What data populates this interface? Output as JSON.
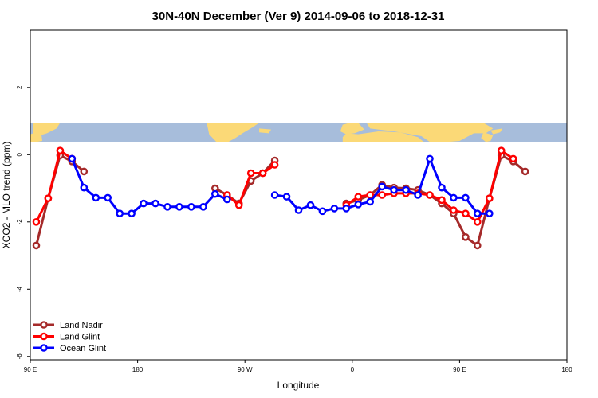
{
  "chart_data": {
    "type": "line",
    "title": "30N-40N December (Ver 9)   2014-09-06 to 2018-12-31",
    "xlabel": "Longitude",
    "ylabel": "XCO2 - MLO trend (ppm)",
    "xlim": [
      90,
      540
    ],
    "ylim": [
      -6.1,
      3.7
    ],
    "x_ticks": [
      {
        "value": 90,
        "label": "90 E"
      },
      {
        "value": 180,
        "label": "180"
      },
      {
        "value": 270,
        "label": "90 W"
      },
      {
        "value": 360,
        "label": "0"
      },
      {
        "value": 450,
        "label": "90 E"
      },
      {
        "value": 540,
        "label": "180"
      }
    ],
    "y_ticks": [
      {
        "value": 2,
        "label": "2"
      },
      {
        "value": 0,
        "label": "0"
      },
      {
        "value": -2,
        "label": "-2"
      },
      {
        "value": -4,
        "label": "-4"
      },
      {
        "value": -6,
        "label": "-6"
      }
    ],
    "grid": false,
    "legend_position": "bottom-left",
    "map_strip": {
      "y_top": 0.95,
      "y_bottom": 0.38,
      "ocean_color": "#a7bddb",
      "land_color": "#fbd977"
    },
    "series": [
      {
        "name": "Land Nadir",
        "color": "#a52a2a",
        "segments": [
          [
            [
              95,
              -2.7
            ],
            [
              105,
              -1.3
            ],
            [
              115,
              -0.02
            ],
            [
              125,
              -0.2
            ],
            [
              135,
              -0.5
            ]
          ],
          [
            [
              245,
              -1.0
            ],
            [
              255,
              -1.2
            ],
            [
              265,
              -1.45
            ],
            [
              275,
              -0.78
            ],
            [
              285,
              -0.55
            ],
            [
              295,
              -0.17
            ]
          ],
          [
            [
              355,
              -1.45
            ],
            [
              365,
              -1.35
            ],
            [
              375,
              -1.2
            ],
            [
              385,
              -0.9
            ],
            [
              395,
              -0.98
            ],
            [
              405,
              -1.0
            ],
            [
              415,
              -1.05
            ],
            [
              425,
              -1.2
            ],
            [
              435,
              -1.45
            ],
            [
              445,
              -1.75
            ],
            [
              455,
              -2.45
            ],
            [
              465,
              -2.7
            ],
            [
              475,
              -1.3
            ],
            [
              485,
              -0.02
            ],
            [
              495,
              -0.2
            ],
            [
              505,
              -0.5
            ]
          ]
        ]
      },
      {
        "name": "Land Glint",
        "color": "#ff0000",
        "segments": [
          [
            [
              95,
              -2.0
            ],
            [
              105,
              -1.3
            ],
            [
              115,
              0.12
            ],
            [
              125,
              -0.12
            ]
          ],
          [
            [
              255,
              -1.2
            ],
            [
              265,
              -1.5
            ],
            [
              275,
              -0.55
            ],
            [
              285,
              -0.55
            ],
            [
              295,
              -0.3
            ]
          ],
          [
            [
              355,
              -1.5
            ],
            [
              365,
              -1.25
            ],
            [
              375,
              -1.2
            ],
            [
              385,
              -1.2
            ],
            [
              395,
              -1.15
            ],
            [
              405,
              -1.15
            ],
            [
              415,
              -1.15
            ],
            [
              425,
              -1.2
            ],
            [
              435,
              -1.35
            ],
            [
              445,
              -1.65
            ],
            [
              455,
              -1.75
            ],
            [
              465,
              -2.0
            ],
            [
              475,
              -1.3
            ],
            [
              485,
              0.12
            ],
            [
              495,
              -0.12
            ]
          ]
        ]
      },
      {
        "name": "Ocean Glint",
        "color": "#0000ff",
        "segments": [
          [
            [
              125,
              -0.12
            ],
            [
              135,
              -0.98
            ],
            [
              145,
              -1.28
            ],
            [
              155,
              -1.28
            ],
            [
              165,
              -1.75
            ],
            [
              175,
              -1.75
            ],
            [
              185,
              -1.45
            ],
            [
              195,
              -1.45
            ],
            [
              205,
              -1.55
            ],
            [
              215,
              -1.55
            ],
            [
              225,
              -1.55
            ],
            [
              235,
              -1.55
            ],
            [
              245,
              -1.17
            ],
            [
              255,
              -1.33
            ]
          ],
          [
            [
              295,
              -1.2
            ],
            [
              305,
              -1.25
            ],
            [
              315,
              -1.65
            ],
            [
              325,
              -1.5
            ],
            [
              335,
              -1.68
            ],
            [
              345,
              -1.6
            ],
            [
              355,
              -1.6
            ],
            [
              365,
              -1.48
            ],
            [
              375,
              -1.4
            ],
            [
              385,
              -0.95
            ],
            [
              395,
              -1.05
            ],
            [
              405,
              -1.05
            ],
            [
              415,
              -1.2
            ],
            [
              425,
              -0.12
            ],
            [
              435,
              -0.98
            ],
            [
              445,
              -1.28
            ],
            [
              455,
              -1.28
            ],
            [
              465,
              -1.75
            ],
            [
              475,
              -1.75
            ]
          ]
        ]
      }
    ]
  }
}
